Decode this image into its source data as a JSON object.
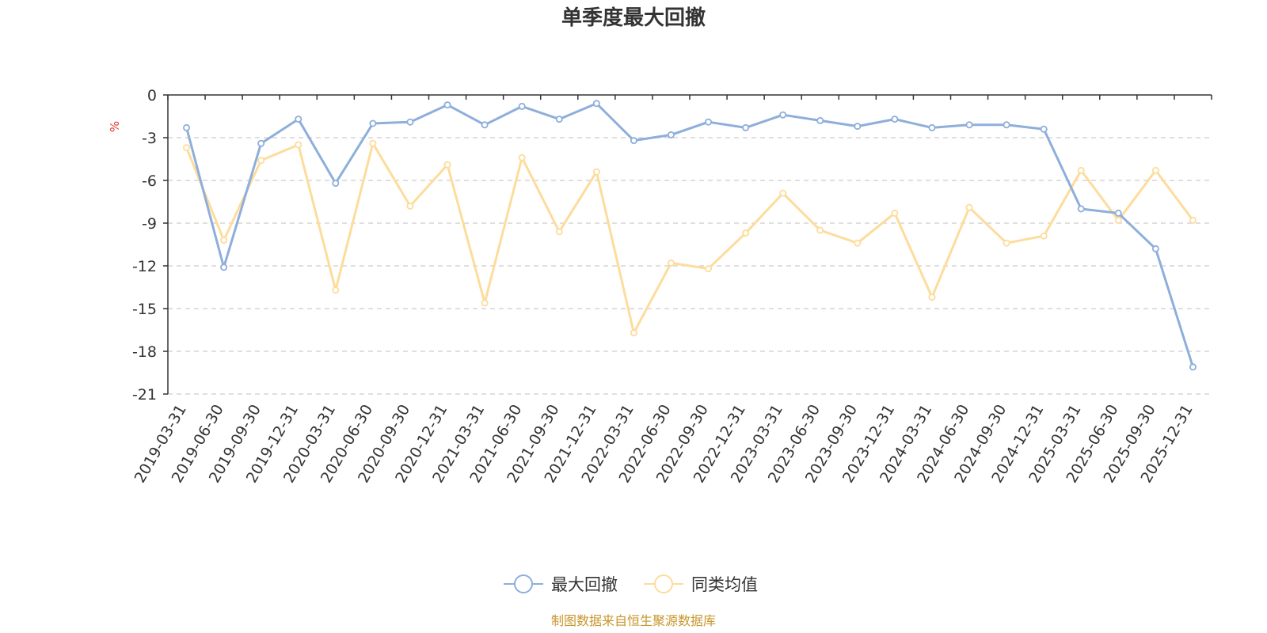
{
  "colors": {
    "series_1": "#8eaedb",
    "series_2": "#fddc9c",
    "unit": "#e8372a",
    "source": "#c8962c",
    "grid": "#cccccc",
    "axis": "#333333"
  },
  "chart_data": {
    "type": "line",
    "title": "单季度最大回撤",
    "ylabel": "%",
    "xlabel": "",
    "ylim": [
      -21,
      0
    ],
    "yticks": [
      0,
      -3,
      -6,
      -9,
      -12,
      -15,
      -18,
      -21
    ],
    "grid": true,
    "legend_position": "bottom-center",
    "categories": [
      "2019-03-31",
      "2019-06-30",
      "2019-09-30",
      "2019-12-31",
      "2020-03-31",
      "2020-06-30",
      "2020-09-30",
      "2020-12-31",
      "2021-03-31",
      "2021-06-30",
      "2021-09-30",
      "2021-12-31",
      "2022-03-31",
      "2022-06-30",
      "2022-09-30",
      "2022-12-31",
      "2023-03-31",
      "2023-06-30",
      "2023-09-30",
      "2023-12-31",
      "2024-03-31",
      "2024-06-30",
      "2024-09-30",
      "2024-12-31",
      "2025-03-31",
      "2025-06-30",
      "2025-09-30",
      "2025-12-31"
    ],
    "series": [
      {
        "name": "最大回撤",
        "values": [
          -2.3,
          -12.1,
          -3.4,
          -1.7,
          -6.2,
          -2.0,
          -1.9,
          -0.7,
          -2.1,
          -0.8,
          -1.7,
          -0.6,
          -3.2,
          -2.8,
          -1.9,
          -2.3,
          -1.4,
          -1.8,
          -2.2,
          -1.7,
          -2.3,
          -2.1,
          -2.1,
          -2.4,
          -8.0,
          -8.3,
          -10.8,
          -19.1
        ]
      },
      {
        "name": "同类均值",
        "values": [
          -3.7,
          -10.2,
          -4.6,
          -3.5,
          -13.7,
          -3.4,
          -7.8,
          -4.9,
          -14.6,
          -4.4,
          -9.6,
          -5.4,
          -16.7,
          -11.8,
          -12.2,
          -9.7,
          -6.9,
          -9.5,
          -10.4,
          -8.3,
          -14.2,
          -7.9,
          -10.4,
          -9.9,
          -5.3,
          -8.8,
          -5.3,
          -8.8
        ]
      }
    ]
  },
  "footer": {
    "source_text": "制图数据来自恒生聚源数据库"
  }
}
